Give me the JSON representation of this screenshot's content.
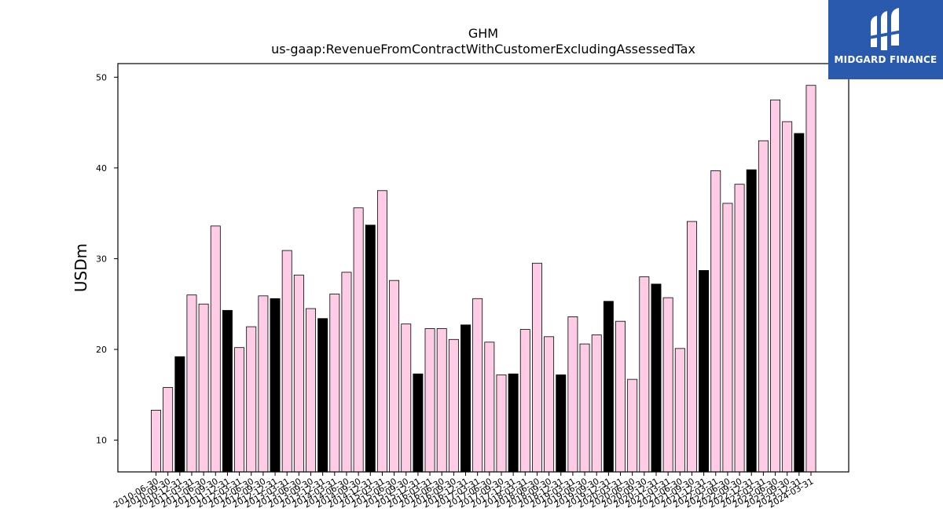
{
  "chart_data": {
    "type": "bar",
    "title": "GHM",
    "subtitle": "us-gaap:RevenueFromContractWithCustomerExcludingAssessedTax",
    "xlabel": "",
    "ylabel": "USDm",
    "ylim": [
      6.5,
      51.5
    ],
    "yticks": [
      10,
      20,
      30,
      40,
      50
    ],
    "grid": false,
    "colors": {
      "quarter": "#ffcce6",
      "fiscal_year_end": "#000000",
      "edge": "#000000"
    },
    "categories": [
      "2010-06-30",
      "2010-09-30",
      "2010-12-31",
      "2011-03-31",
      "2011-06-30",
      "2011-09-30",
      "2011-12-31",
      "2012-03-31",
      "2012-06-30",
      "2012-09-30",
      "2012-12-31",
      "2013-03-31",
      "2013-06-30",
      "2013-09-30",
      "2013-12-31",
      "2014-03-31",
      "2014-06-30",
      "2014-09-30",
      "2014-12-31",
      "2015-03-31",
      "2015-06-30",
      "2015-09-30",
      "2015-12-31",
      "2016-03-31",
      "2016-06-30",
      "2016-09-30",
      "2016-12-31",
      "2017-03-31",
      "2017-06-30",
      "2017-09-30",
      "2017-12-31",
      "2018-03-31",
      "2018-06-30",
      "2018-09-30",
      "2018-12-31",
      "2019-03-31",
      "2019-06-30",
      "2019-09-30",
      "2019-12-31",
      "2020-03-31",
      "2020-06-30",
      "2020-09-30",
      "2020-12-31",
      "2021-03-31",
      "2021-06-30",
      "2021-09-30",
      "2021-12-31",
      "2022-03-31",
      "2022-06-30",
      "2022-09-30",
      "2022-12-31",
      "2023-03-31",
      "2023-06-30",
      "2023-09-30",
      "2023-12-31",
      "2024-03-31"
    ],
    "values": [
      13.3,
      15.8,
      19.2,
      26.0,
      25.0,
      33.6,
      24.3,
      20.2,
      22.5,
      25.9,
      25.6,
      30.9,
      28.2,
      24.5,
      23.4,
      26.1,
      28.5,
      35.6,
      33.7,
      37.5,
      27.6,
      22.8,
      17.3,
      22.3,
      22.3,
      21.1,
      22.7,
      25.6,
      20.8,
      17.2,
      17.3,
      22.2,
      29.5,
      21.4,
      17.2,
      23.6,
      20.6,
      21.6,
      25.3,
      23.1,
      16.7,
      28.0,
      27.2,
      25.7,
      20.1,
      34.1,
      28.7,
      39.7,
      36.1,
      38.2,
      39.8,
      43.0,
      47.5,
      45.1,
      43.8,
      49.1
    ],
    "highlighted_categories": [
      "2010-12-31",
      "2011-12-31",
      "2012-12-31",
      "2013-12-31",
      "2014-12-31",
      "2015-12-31",
      "2016-12-31",
      "2017-12-31",
      "2018-12-31",
      "2019-12-31",
      "2020-12-31",
      "2021-12-31",
      "2022-12-31",
      "2023-12-31"
    ]
  },
  "logo": {
    "text": "MIDGARD FINANCE",
    "background": "#2a5aad"
  }
}
